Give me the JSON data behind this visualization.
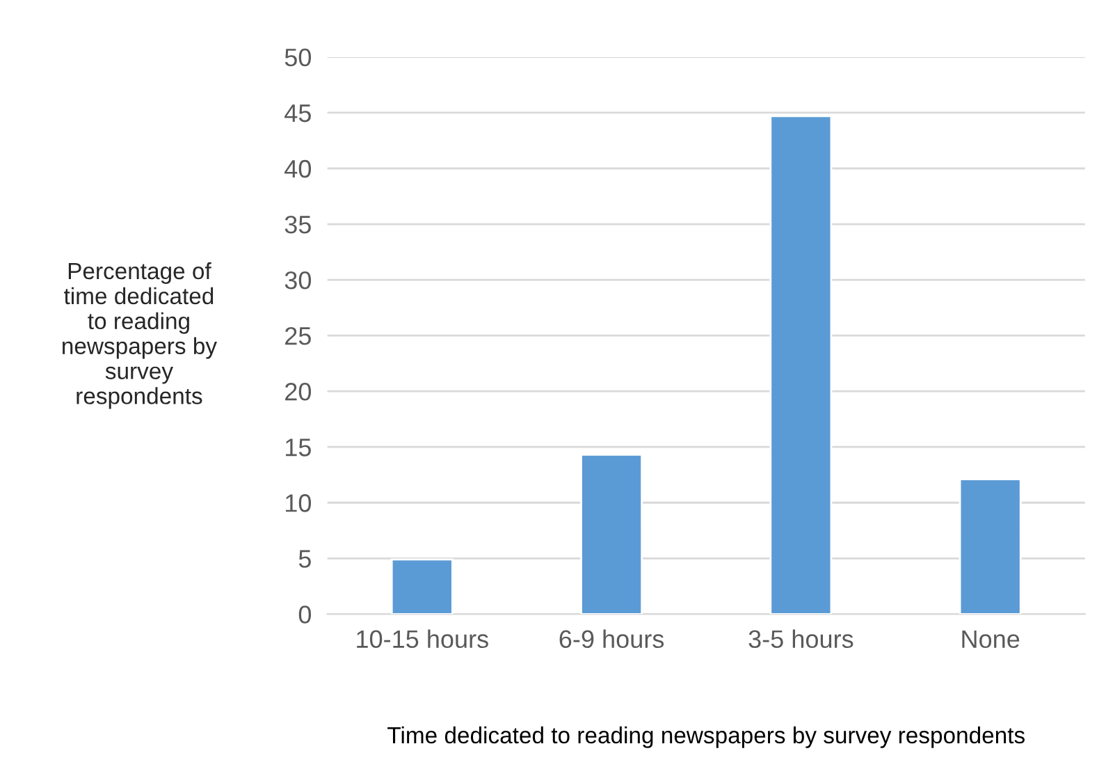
{
  "chart_data": {
    "type": "bar",
    "xlabel": "Time dedicated to reading newspapers by survey respondents",
    "ylabel": "Percentage of\ntime dedicated\nto reading\nnewspapers by\nsurvey\nrespondents",
    "categories": [
      "10-15 hours",
      "6-9 hours",
      "3-5 hours",
      "None"
    ],
    "values": [
      4.9,
      14.3,
      44.7,
      12.1
    ],
    "color": "#5b9bd5",
    "ylim": [
      0,
      50
    ],
    "yticks": [
      0,
      5,
      10,
      15,
      20,
      25,
      30,
      35,
      40,
      45,
      50
    ],
    "grid": "y",
    "legend": false
  }
}
